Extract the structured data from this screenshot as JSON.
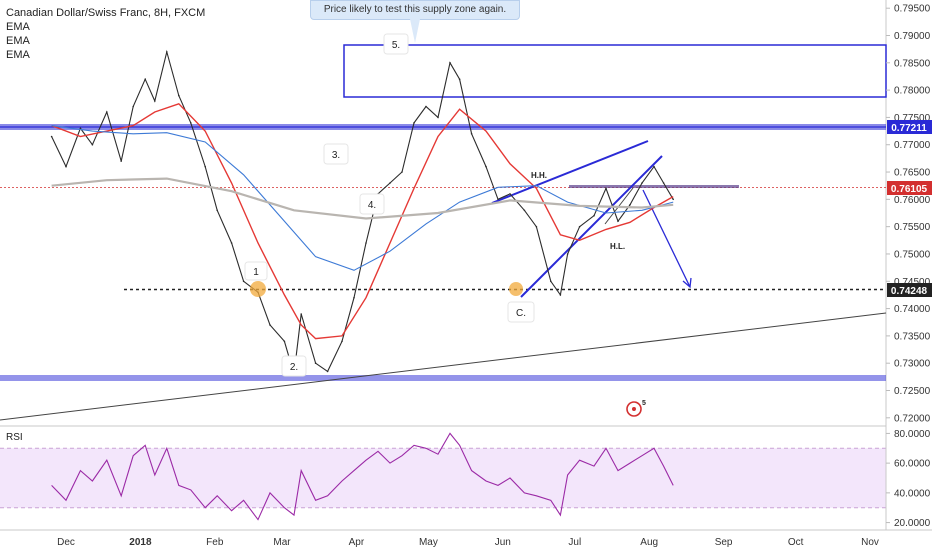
{
  "legend": {
    "title": "Canadian Dollar/Swiss Franc, 8H, FXCM",
    "indicators": [
      "EMA",
      "EMA",
      "EMA"
    ]
  },
  "callout": {
    "text": "Price likely to test this supply zone again."
  },
  "price_labels": {
    "resistance": "0.77211",
    "current": "0.76105",
    "support": "0.74248"
  },
  "annotations": {
    "wave_1": "1",
    "wave_2": "2.",
    "wave_3": "3.",
    "wave_4": "4.",
    "wave_5": "5.",
    "wave_c": "C.",
    "higher_high": "H.H.",
    "higher_low": "H.L."
  },
  "rsi_label": "RSI",
  "logo_badge": "5",
  "colors": {
    "price_line": "#2c2c2c",
    "ema_red": "#e53935",
    "ema_blue": "#3d7ad6",
    "ema_gray": "#b9b5b0",
    "zone_blue": "#2a2ad6",
    "rsi_line": "#9b2aa6",
    "rsi_band": "#f3e6fb",
    "current_price_red": "#d32f2f"
  },
  "chart_data": [
    {
      "type": "line",
      "title": "Canadian Dollar/Swiss Franc, 8H, FXCM",
      "xlabel": "",
      "ylabel": "",
      "x_ticks": [
        "Dec",
        "2018",
        "Feb",
        "Mar",
        "Apr",
        "May",
        "Jun",
        "Jul",
        "Aug",
        "Sep",
        "Oct",
        "Nov"
      ],
      "y_ticks": [
        0.72,
        0.725,
        0.73,
        0.735,
        0.74,
        0.745,
        0.75,
        0.755,
        0.76,
        0.765,
        0.77,
        0.775,
        0.78,
        0.785,
        0.79,
        0.795
      ],
      "y_tick_labels": [
        "0.72000",
        "0.72500",
        "0.73000",
        "0.73500",
        "0.74000",
        "0.74500",
        "0.75000",
        "0.75500",
        "0.76000",
        "0.76500",
        "0.77000",
        "0.77500",
        "0.78000",
        "0.78500",
        "0.79000",
        "0.79500"
      ],
      "ylim": [
        0.7185,
        0.7965
      ],
      "grid": false,
      "series": [
        {
          "name": "Price",
          "x": [
            "2017-11-25",
            "2017-12-01",
            "2017-12-07",
            "2017-12-12",
            "2017-12-18",
            "2017-12-24",
            "2017-12-29",
            "2018-01-03",
            "2018-01-07",
            "2018-01-12",
            "2018-01-17",
            "2018-01-22",
            "2018-01-28",
            "2018-02-02",
            "2018-02-08",
            "2018-02-13",
            "2018-02-19",
            "2018-02-24",
            "2018-03-02",
            "2018-03-06",
            "2018-03-09",
            "2018-03-15",
            "2018-03-20",
            "2018-03-26",
            "2018-03-31",
            "2018-04-05",
            "2018-04-10",
            "2018-04-15",
            "2018-04-20",
            "2018-04-25",
            "2018-04-30",
            "2018-05-05",
            "2018-05-10",
            "2018-05-14",
            "2018-05-19",
            "2018-05-25",
            "2018-05-30",
            "2018-06-04",
            "2018-06-10",
            "2018-06-15",
            "2018-06-21",
            "2018-06-25",
            "2018-06-28",
            "2018-07-03",
            "2018-07-09",
            "2018-07-14",
            "2018-07-19",
            "2018-07-24",
            "2018-07-29",
            "2018-08-03",
            "2018-08-07",
            "2018-08-11"
          ],
          "values": [
            0.7715,
            0.766,
            0.773,
            0.77,
            0.776,
            0.767,
            0.777,
            0.782,
            0.778,
            0.787,
            0.779,
            0.774,
            0.766,
            0.758,
            0.752,
            0.745,
            0.743,
            0.737,
            0.734,
            0.728,
            0.739,
            0.73,
            0.7285,
            0.734,
            0.742,
            0.752,
            0.761,
            0.763,
            0.765,
            0.774,
            0.777,
            0.775,
            0.785,
            0.782,
            0.772,
            0.766,
            0.76,
            0.761,
            0.758,
            0.755,
            0.745,
            0.7425,
            0.75,
            0.755,
            0.757,
            0.762,
            0.756,
            0.759,
            0.763,
            0.766,
            0.763,
            0.76
          ]
        },
        {
          "name": "",
          "x": [
            "2017-11-25",
            "2017-12-07",
            "2017-12-18",
            "2017-12-29",
            "2018-01-07",
            "2018-01-17",
            "2018-01-28",
            "2018-02-08",
            "2018-02-19",
            "2018-03-02",
            "2018-03-09",
            "2018-03-15",
            "2018-03-26",
            "2018-04-05",
            "2018-04-15",
            "2018-04-25",
            "2018-05-05",
            "2018-05-14",
            "2018-05-25",
            "2018-06-04",
            "2018-06-15",
            "2018-06-25",
            "2018-07-03",
            "2018-07-14",
            "2018-07-24",
            "2018-08-03",
            "2018-08-11"
          ],
          "values": [
            0.7735,
            0.7715,
            0.7725,
            0.7735,
            0.776,
            0.7775,
            0.7725,
            0.763,
            0.752,
            0.7425,
            0.737,
            0.7345,
            0.735,
            0.742,
            0.752,
            0.762,
            0.7715,
            0.7765,
            0.7725,
            0.7665,
            0.762,
            0.7535,
            0.7525,
            0.7545,
            0.7558,
            0.7585,
            0.7605
          ]
        },
        {
          "name": "",
          "x": [
            "2017-11-25",
            "2017-12-12",
            "2017-12-29",
            "2018-01-12",
            "2018-01-28",
            "2018-02-13",
            "2018-02-28",
            "2018-03-15",
            "2018-03-31",
            "2018-04-15",
            "2018-04-30",
            "2018-05-14",
            "2018-05-30",
            "2018-06-15",
            "2018-06-28",
            "2018-07-14",
            "2018-07-29",
            "2018-08-11"
          ],
          "values": [
            0.7735,
            0.7725,
            0.772,
            0.7722,
            0.7705,
            0.7645,
            0.757,
            0.7495,
            0.747,
            0.7505,
            0.7555,
            0.7595,
            0.7622,
            0.7625,
            0.7595,
            0.7575,
            0.758,
            0.7595
          ]
        },
        {
          "name": "",
          "x": [
            "2017-11-25",
            "2017-12-18",
            "2018-01-12",
            "2018-02-08",
            "2018-03-06",
            "2018-04-05",
            "2018-05-05",
            "2018-06-04",
            "2018-07-03",
            "2018-07-29",
            "2018-08-11"
          ],
          "values": [
            0.7625,
            0.7635,
            0.7638,
            0.7615,
            0.758,
            0.7565,
            0.7575,
            0.7598,
            0.7588,
            0.7585,
            0.759
          ]
        }
      ]
    },
    {
      "type": "line",
      "title": "RSI",
      "ylim": [
        15,
        85
      ],
      "y_ticks": [
        20,
        40,
        60,
        80
      ],
      "y_tick_labels": [
        "20.0000",
        "40.0000",
        "60.0000",
        "80.0000"
      ],
      "band": [
        30,
        70
      ],
      "series": [
        {
          "name": "RSI",
          "x": [
            "2017-11-25",
            "2017-12-01",
            "2017-12-07",
            "2017-12-12",
            "2017-12-18",
            "2017-12-24",
            "2017-12-29",
            "2018-01-03",
            "2018-01-07",
            "2018-01-12",
            "2018-01-17",
            "2018-01-22",
            "2018-01-28",
            "2018-02-02",
            "2018-02-08",
            "2018-02-13",
            "2018-02-19",
            "2018-02-24",
            "2018-03-02",
            "2018-03-06",
            "2018-03-09",
            "2018-03-15",
            "2018-03-20",
            "2018-03-26",
            "2018-03-31",
            "2018-04-05",
            "2018-04-10",
            "2018-04-15",
            "2018-04-20",
            "2018-04-25",
            "2018-04-30",
            "2018-05-05",
            "2018-05-10",
            "2018-05-14",
            "2018-05-19",
            "2018-05-25",
            "2018-05-30",
            "2018-06-04",
            "2018-06-10",
            "2018-06-15",
            "2018-06-21",
            "2018-06-25",
            "2018-06-28",
            "2018-07-03",
            "2018-07-09",
            "2018-07-14",
            "2018-07-19",
            "2018-07-24",
            "2018-07-29",
            "2018-08-03",
            "2018-08-07",
            "2018-08-11"
          ],
          "values": [
            45,
            35,
            55,
            48,
            62,
            38,
            65,
            72,
            52,
            70,
            45,
            42,
            30,
            38,
            28,
            35,
            22,
            40,
            30,
            25,
            55,
            35,
            38,
            48,
            55,
            62,
            68,
            60,
            65,
            72,
            70,
            66,
            80,
            72,
            55,
            48,
            45,
            50,
            40,
            38,
            35,
            25,
            52,
            62,
            58,
            70,
            55,
            60,
            65,
            70,
            58,
            45
          ]
        }
      ]
    }
  ]
}
